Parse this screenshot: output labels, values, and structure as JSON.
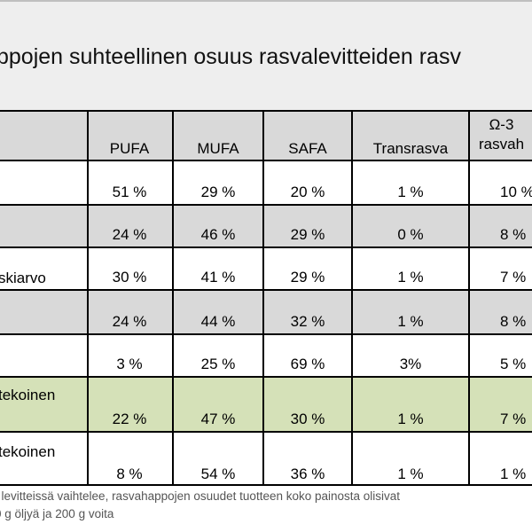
{
  "title": "ppojen suhteellinen osuus rasvalevitteiden rasv",
  "header": {
    "row_label": "",
    "columns": [
      "PUFA",
      "MUFA",
      "SAFA",
      "Transrasva"
    ],
    "last_column_line1": "Ω-3",
    "last_column_line2": "rasvah"
  },
  "rows": [
    {
      "label": "",
      "values": [
        "51 %",
        "29 %",
        "20 %",
        "1 %",
        "10 %"
      ]
    },
    {
      "label": "",
      "values": [
        "24 %",
        "46 %",
        "29 %",
        "0 %",
        "8 %"
      ]
    },
    {
      "label": "skiarvo",
      "values": [
        "30 %",
        "41 %",
        "29 %",
        "1 %",
        "7 %"
      ]
    },
    {
      "label": "",
      "values": [
        "24 %",
        "44 %",
        "32 %",
        "1 %",
        "8 %"
      ]
    },
    {
      "label": "",
      "values": [
        "3 %",
        "25 %",
        "69 %",
        "3%",
        "5 %"
      ]
    },
    {
      "label": "tekoinen",
      "values": [
        "22 %",
        "47 %",
        "30 %",
        "1 %",
        "7 %"
      ]
    },
    {
      "label": "tekoinen",
      "values": [
        "8 %",
        "54 %",
        "36 %",
        "1 %",
        "1 %"
      ]
    }
  ],
  "footnote": {
    "line1": "ı levitteissä vaihtelee, rasvahappojen osuudet tuotteen koko painosta olisivat",
    "line2": "0 g öljyä ja 200 g voita"
  },
  "colors": {
    "header_bg": "#d9d9d9",
    "gray_row": "#d9d9d9",
    "green_row": "#d5e1b8",
    "white_row": "#ffffff",
    "title_bg": "#eeeeee"
  }
}
